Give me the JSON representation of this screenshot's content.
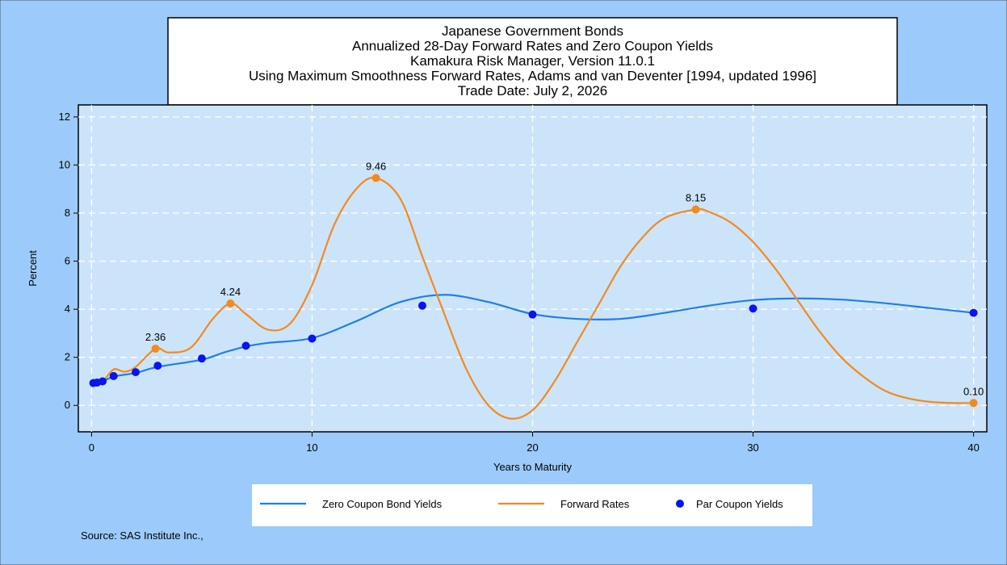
{
  "chart_data": {
    "type": "line",
    "title": [
      "Japanese Government Bonds",
      "Annualized 28-Day Forward Rates and Zero Coupon Yields",
      "Kamakura Risk Manager, Version 11.0.1",
      "Using Maximum Smoothness Forward Rates, Adams and van Deventer [1994, updated 1996]",
      "Trade Date: July 2, 2026"
    ],
    "xlabel": "Years to Maturity",
    "ylabel": "Percent",
    "source": "Source: SAS Institute Inc.,",
    "xlim": [
      -0.6,
      40.6
    ],
    "ylim": [
      -1.1,
      12.5
    ],
    "xticks": [
      0,
      10,
      20,
      30,
      40
    ],
    "yticks": [
      0,
      2,
      4,
      6,
      8,
      10,
      12
    ],
    "grid": true,
    "series": [
      {
        "name": "Zero Coupon Bond Yields",
        "mode": "line",
        "color": "#1f7fe8",
        "x": [
          0,
          0.25,
          0.5,
          1,
          2,
          3,
          5,
          6,
          7,
          8,
          10,
          12,
          14,
          16,
          18,
          20,
          22,
          24,
          26,
          28,
          30,
          32,
          34,
          36,
          38,
          40
        ],
        "values": [
          0.9,
          0.93,
          0.98,
          1.2,
          1.35,
          1.6,
          1.9,
          2.2,
          2.45,
          2.6,
          2.8,
          3.5,
          4.3,
          4.6,
          4.3,
          3.8,
          3.6,
          3.6,
          3.85,
          4.15,
          4.38,
          4.45,
          4.4,
          4.25,
          4.05,
          3.85
        ]
      },
      {
        "name": "Forward Rates",
        "mode": "line",
        "color": "#f28a1e",
        "x": [
          0,
          0.5,
          1,
          1.5,
          2,
          2.9,
          3.5,
          4.5,
          5.5,
          6.3,
          7,
          8,
          9,
          10,
          11,
          12,
          12.9,
          14,
          15,
          16,
          17,
          18,
          19,
          20,
          21,
          22,
          23,
          24,
          25,
          26,
          27.4,
          28,
          29,
          30,
          31,
          32,
          33,
          34,
          35,
          36,
          37,
          38,
          39,
          40
        ],
        "values": [
          0.9,
          1.0,
          1.5,
          1.4,
          1.6,
          2.36,
          2.2,
          2.4,
          3.6,
          4.24,
          3.8,
          3.15,
          3.4,
          5.0,
          7.5,
          9.0,
          9.46,
          8.6,
          6.2,
          3.8,
          1.5,
          0.0,
          -0.55,
          -0.2,
          1.0,
          2.6,
          4.2,
          5.8,
          7.0,
          7.8,
          8.15,
          8.05,
          7.6,
          6.8,
          5.7,
          4.4,
          3.1,
          2.0,
          1.2,
          0.6,
          0.3,
          0.15,
          0.1,
          0.1
        ],
        "markers": {
          "x": [
            2.9,
            6.3,
            12.9,
            27.4,
            40
          ],
          "values": [
            2.36,
            4.24,
            9.46,
            8.15,
            0.1
          ],
          "value_labels": [
            "2.36",
            "4.24",
            "9.46",
            "8.15",
            "0.10"
          ]
        }
      },
      {
        "name": "Par Coupon Yields",
        "mode": "marker",
        "color": "#0a14f0",
        "x": [
          0.08,
          0.25,
          0.5,
          1,
          2,
          3,
          5,
          7,
          10,
          15,
          20,
          30,
          40
        ],
        "values": [
          0.93,
          0.95,
          1.0,
          1.22,
          1.38,
          1.65,
          1.95,
          2.48,
          2.78,
          4.15,
          3.78,
          4.03,
          3.85
        ]
      }
    ]
  }
}
